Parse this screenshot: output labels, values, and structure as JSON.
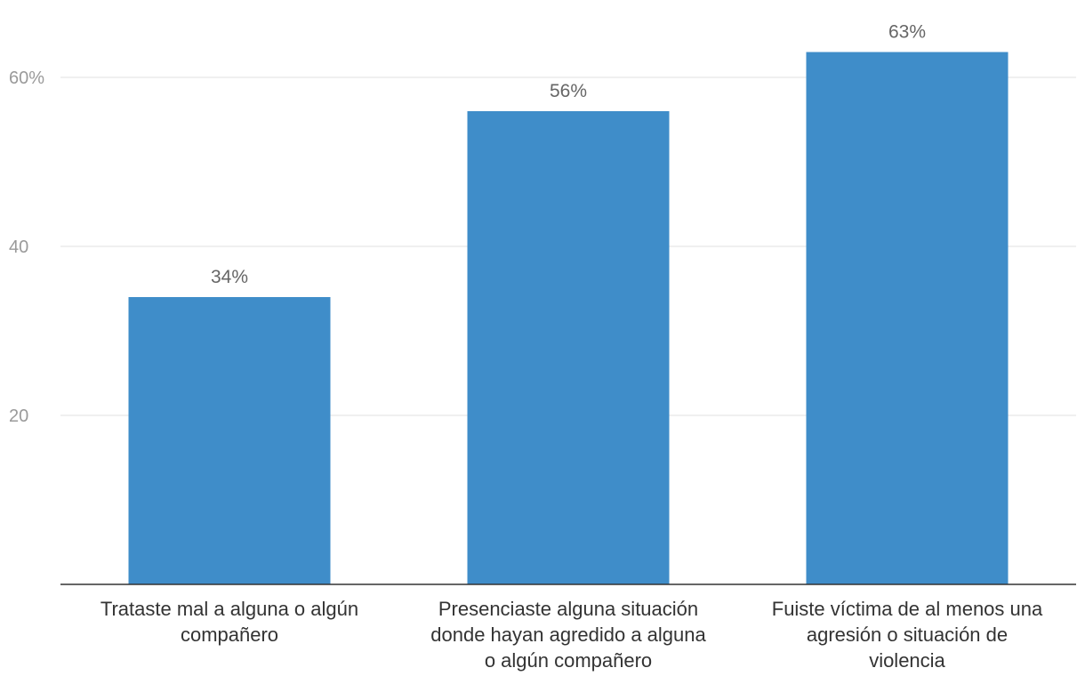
{
  "chart_data": {
    "type": "bar",
    "categories": [
      "Trataste mal a alguna o algún compañero",
      "Presenciaste alguna situación donde hayan agredido a alguna o algún compañero",
      "Fuiste víctima de al menos una agresión o situación de violencia"
    ],
    "category_lines": [
      [
        "Trataste mal a alguna o algún",
        "compañero"
      ],
      [
        "Presenciaste alguna situación",
        "donde hayan agredido a alguna",
        "o algún compañero"
      ],
      [
        "Fuiste víctima de al menos una",
        "agresión o situación de",
        "violencia"
      ]
    ],
    "values": [
      34,
      56,
      63
    ],
    "value_labels": [
      "34%",
      "56%",
      "63%"
    ],
    "yticks": [
      20,
      40,
      60
    ],
    "ytick_labels": [
      "20",
      "40",
      "60%"
    ],
    "ylim": [
      0,
      60
    ],
    "title": "",
    "xlabel": "",
    "ylabel": "",
    "grid": true,
    "bar_color": "#3f8dc9"
  }
}
